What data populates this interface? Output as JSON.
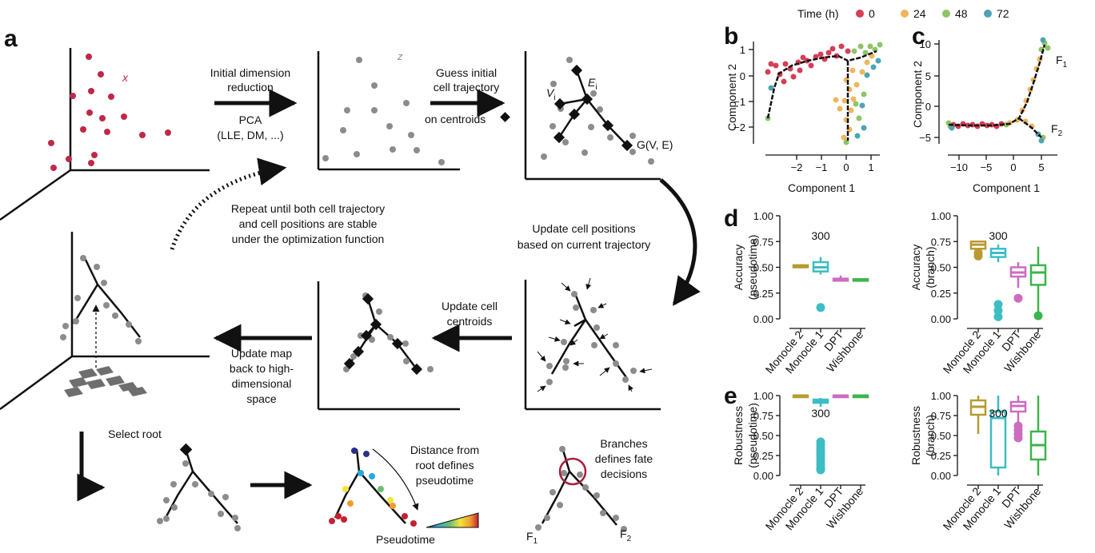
{
  "panel_labels": {
    "a": "a",
    "b": "b",
    "c": "c",
    "d": "d",
    "e": "e"
  },
  "legend": {
    "title": "Time (h)",
    "items": [
      {
        "label": "0",
        "color": "#d43f56"
      },
      {
        "label": "24",
        "color": "#efb65d"
      },
      {
        "label": "48",
        "color": "#8fc466"
      },
      {
        "label": "72",
        "color": "#4ea4b3"
      }
    ]
  },
  "panel_a": {
    "x_label": "x",
    "z_label": "z",
    "step1": {
      "line1": "Initial dimension",
      "line2": "reduction",
      "m1": "PCA",
      "m2": "(LLE, DM, ...)"
    },
    "step2": {
      "line1": "Guess initial",
      "line2": "cell trajectory",
      "line3": "on centroids"
    },
    "vi": "V",
    "vi_sub": "i",
    "ei": "E",
    "ei_sub": "i",
    "gve": "G(V, E)",
    "repeat": {
      "line1": "Repeat until both cell trajectory",
      "line2": "and cell positions are stable",
      "line3": "under the optimization function"
    },
    "update_pos": {
      "line1": "Update cell positions",
      "line2": "based on current trajectory"
    },
    "update_centroids": {
      "line1": "Update cell",
      "line2": "centroids"
    },
    "update_map": {
      "line1": "Update map",
      "line2": "back to high-",
      "line3": "dimensional",
      "line4": "space"
    },
    "select_root": "Select root",
    "distance": {
      "line1": "Distance from",
      "line2": "root defines",
      "line3": "pseudotime"
    },
    "pseudotime": "Pseudotime",
    "branches": {
      "line1": "Branches",
      "line2": "defines fate",
      "line3": "decisions"
    },
    "f1": "F",
    "f1_sub": "1",
    "f2": "F",
    "f2_sub": "2",
    "colors": {
      "dot_red": "#c0284a",
      "dot_gray": "#8c8c8c",
      "circle": "#a8203a"
    }
  },
  "panel_b": {
    "xlabel": "Component 1",
    "ylabel": "Component 2",
    "xticks": [
      "−2",
      "−1",
      "0",
      "1"
    ],
    "yticks": [
      "1",
      "0",
      "−1",
      "−2"
    ]
  },
  "panel_c": {
    "xlabel": "Component 1",
    "ylabel": "Component 2",
    "xticks": [
      "−10",
      "−5",
      "0",
      "5"
    ],
    "yticks": [
      "10",
      "5",
      "0",
      "−5"
    ],
    "f1": "F",
    "f1_sub": "1",
    "f2": "F",
    "f2_sub": "2"
  },
  "chart_data": [
    {
      "type": "box",
      "panel": "d-left",
      "ylabel": [
        "Accuracy",
        "(pseudotime)"
      ],
      "ylim": [
        0,
        1
      ],
      "yticks": [
        "1.00",
        "0.75",
        "0.50",
        "0.25",
        "0.00"
      ],
      "categories": [
        "Monocle 2",
        "Monocle 1",
        "DPT",
        "Wishbone"
      ],
      "colors": [
        "#b89a30",
        "#3dbdc4",
        "#cc6cc0",
        "#3cb54a"
      ],
      "annotation": "300",
      "boxes": [
        {
          "min": 0.49,
          "q1": 0.5,
          "median": 0.51,
          "q3": 0.52,
          "max": 0.53,
          "outliers": []
        },
        {
          "min": 0.43,
          "q1": 0.46,
          "median": 0.5,
          "q3": 0.55,
          "max": 0.6,
          "outliers": [
            0.11
          ]
        },
        {
          "min": 0.36,
          "q1": 0.37,
          "median": 0.38,
          "q3": 0.39,
          "max": 0.42,
          "outliers": []
        },
        {
          "min": 0.37,
          "q1": 0.375,
          "median": 0.38,
          "q3": 0.385,
          "max": 0.39,
          "outliers": []
        }
      ]
    },
    {
      "type": "box",
      "panel": "d-right",
      "ylabel": [
        "Accuracy",
        "(branch)"
      ],
      "ylim": [
        0,
        1
      ],
      "yticks": [
        "1.00",
        "0.75",
        "0.50",
        "0.25",
        "0.00"
      ],
      "categories": [
        "Monocle 2",
        "Monocle 1",
        "DPT",
        "Wishbone"
      ],
      "colors": [
        "#b89a30",
        "#3dbdc4",
        "#cc6cc0",
        "#3cb54a"
      ],
      "annotation": "300",
      "boxes": [
        {
          "min": 0.62,
          "q1": 0.68,
          "median": 0.72,
          "q3": 0.75,
          "max": 0.76,
          "outliers": [
            0.64,
            0.61
          ]
        },
        {
          "min": 0.55,
          "q1": 0.6,
          "median": 0.64,
          "q3": 0.68,
          "max": 0.72,
          "outliers": [
            0.14,
            0.08,
            0.02
          ]
        },
        {
          "min": 0.3,
          "q1": 0.41,
          "median": 0.45,
          "q3": 0.5,
          "max": 0.55,
          "outliers": [
            0.2
          ]
        },
        {
          "min": 0.05,
          "q1": 0.33,
          "median": 0.45,
          "q3": 0.52,
          "max": 0.7,
          "outliers": [
            0.03
          ]
        }
      ]
    },
    {
      "type": "box",
      "panel": "e-left",
      "ylabel": [
        "Robustness",
        "(pseudotime)"
      ],
      "ylim": [
        0,
        1
      ],
      "yticks": [
        "1.00",
        "0.75",
        "0.50",
        "0.25",
        "0.00"
      ],
      "categories": [
        "Monocle 2",
        "Monocle 1",
        "DPT",
        "Wishbone"
      ],
      "colors": [
        "#b89a30",
        "#3dbdc4",
        "#cc6cc0",
        "#3cb54a"
      ],
      "annotation": "300",
      "boxes": [
        {
          "min": 0.97,
          "q1": 0.99,
          "median": 1.0,
          "q3": 1.0,
          "max": 1.0,
          "outliers": []
        },
        {
          "min": 0.86,
          "q1": 0.91,
          "median": 0.93,
          "q3": 0.95,
          "max": 0.97,
          "outliers": [
            0.42,
            0.38,
            0.34,
            0.3,
            0.26,
            0.22,
            0.18,
            0.14,
            0.1,
            0.07
          ]
        },
        {
          "min": 0.97,
          "q1": 0.99,
          "median": 1.0,
          "q3": 1.0,
          "max": 1.0,
          "outliers": []
        },
        {
          "min": 0.97,
          "q1": 0.99,
          "median": 1.0,
          "q3": 1.0,
          "max": 1.0,
          "outliers": []
        }
      ]
    },
    {
      "type": "box",
      "panel": "e-right",
      "ylabel": [
        "Robustness",
        "(branch)"
      ],
      "ylim": [
        0,
        1
      ],
      "yticks": [
        "1.00",
        "0.75",
        "0.50",
        "0.25",
        "0.00"
      ],
      "categories": [
        "Monocle 2",
        "Monocle 1",
        "DPT",
        "Wishbone"
      ],
      "colors": [
        "#b89a30",
        "#3dbdc4",
        "#cc6cc0",
        "#3cb54a"
      ],
      "annotation": "300",
      "boxes": [
        {
          "min": 0.52,
          "q1": 0.76,
          "median": 0.86,
          "q3": 0.94,
          "max": 1.0,
          "outliers": []
        },
        {
          "min": 0.0,
          "q1": 0.1,
          "median": 0.72,
          "q3": 0.8,
          "max": 1.0,
          "outliers": []
        },
        {
          "min": 0.62,
          "q1": 0.8,
          "median": 0.87,
          "q3": 0.92,
          "max": 1.0,
          "outliers": [
            0.62,
            0.57,
            0.52,
            0.47
          ]
        },
        {
          "min": 0.0,
          "q1": 0.2,
          "median": 0.38,
          "q3": 0.55,
          "max": 1.0,
          "outliers": []
        }
      ]
    }
  ]
}
